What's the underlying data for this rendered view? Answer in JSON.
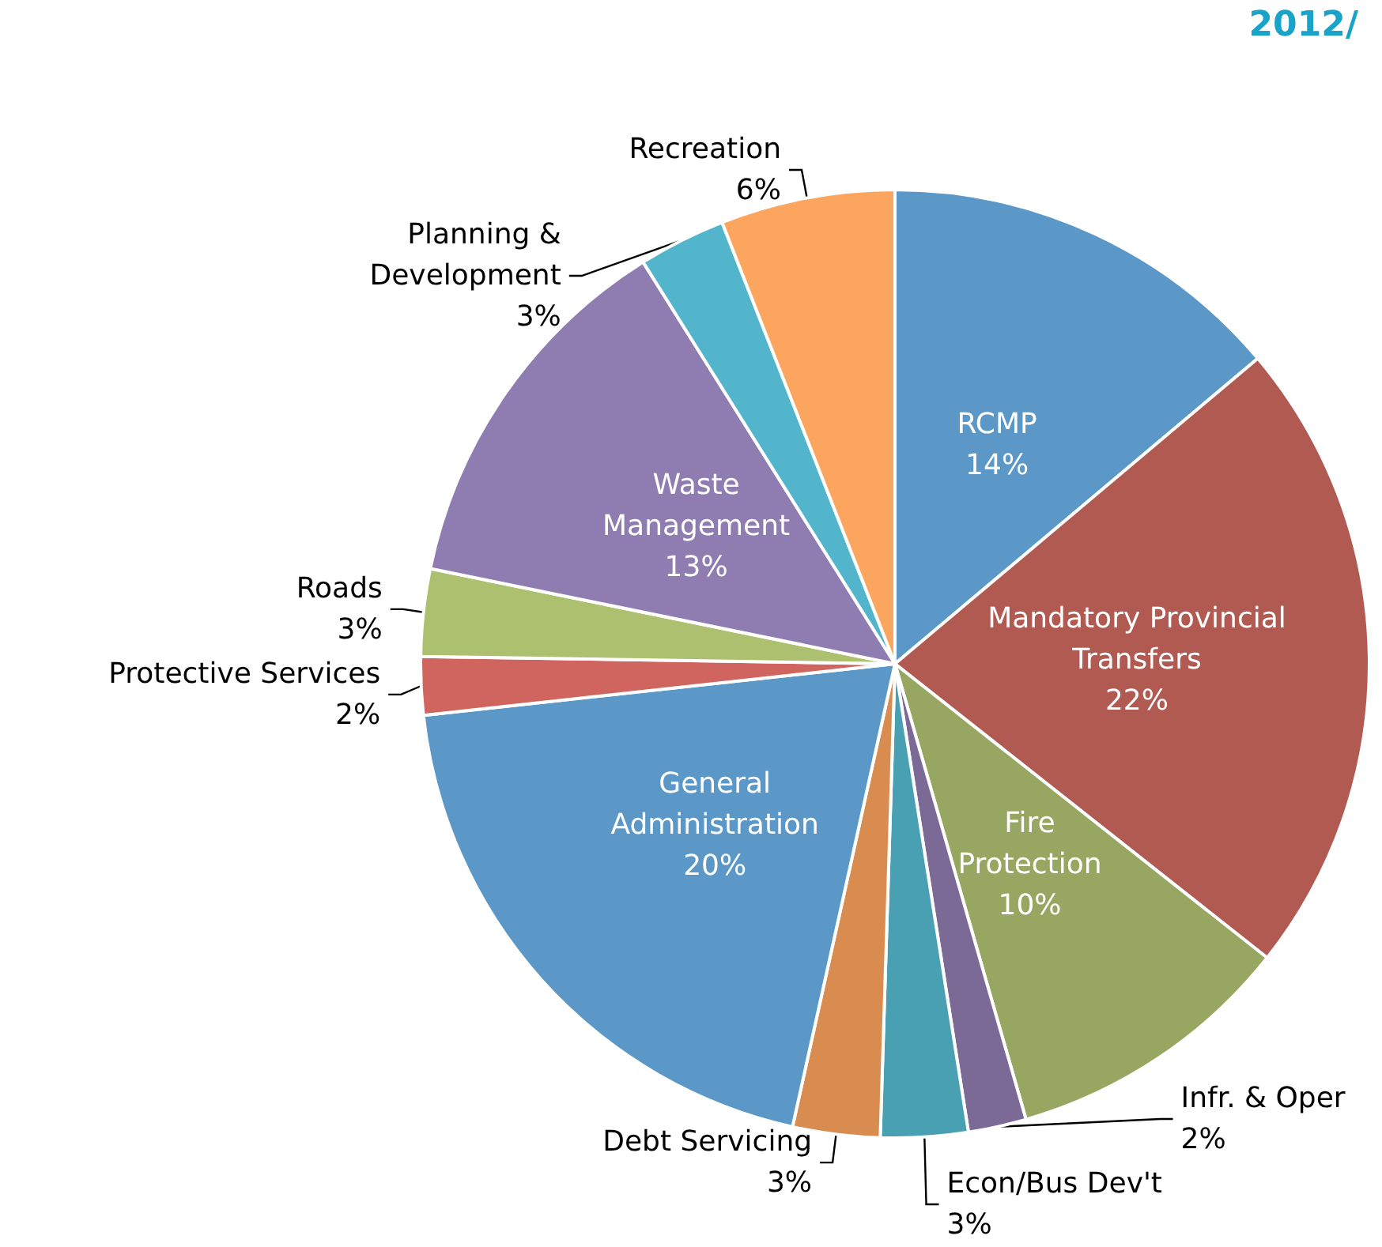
{
  "chart_data": {
    "type": "pie",
    "title": "2012/",
    "categories": [
      "RCMP",
      "Mandatory Provincial\nTransfers",
      "Fire\nProtection",
      "Infr. & Oper",
      "Econ/Bus Dev't",
      "Debt Servicing",
      "General\nAdministration",
      "Protective Services",
      "Roads",
      "Waste\nManagement",
      "Planning &\nDevelopment",
      "Recreation"
    ],
    "values": [
      14,
      22,
      10,
      2,
      3,
      3,
      20,
      2,
      3,
      13,
      3,
      6
    ],
    "value_labels": [
      "14%",
      "22%",
      "10%",
      "2%",
      "3%",
      "3%",
      "20%",
      "2%",
      "3%",
      "13%",
      "3%",
      "6%"
    ],
    "colors": [
      "#5b97c7",
      "#b05a52",
      "#97a660",
      "#7b6a96",
      "#4aa0b3",
      "#d98c4f",
      "#5b97c7",
      "#d0645f",
      "#adc070",
      "#8f7db1",
      "#52b5cc",
      "#fba55f"
    ],
    "legend": false
  }
}
